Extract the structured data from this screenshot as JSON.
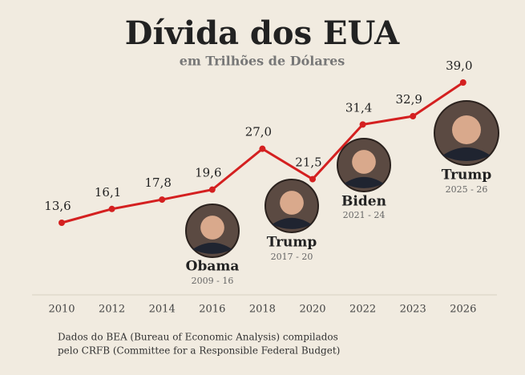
{
  "chart_data": {
    "type": "line",
    "title": "Dívida dos EUA",
    "subtitle": "em Trilhões de Dólares",
    "categories": [
      "2010",
      "2012",
      "2014",
      "2016",
      "2018",
      "2020",
      "2022",
      "2023",
      "2026"
    ],
    "series": [
      {
        "name": "Dívida",
        "color": "#d42020",
        "values": [
          13.6,
          16.1,
          17.8,
          19.6,
          27.0,
          21.5,
          31.4,
          32.9,
          39.0
        ],
        "value_labels": [
          "13,6",
          "16,1",
          "17,8",
          "19,6",
          "27,0",
          "21,5",
          "31,4",
          "32,9",
          "39,0"
        ]
      }
    ],
    "annotations": [
      {
        "text": "Obama",
        "subtext": "2009 - 16"
      },
      {
        "text": "Trump",
        "subtext": "2017 - 20"
      },
      {
        "text": "Biden",
        "subtext": "2021 - 24"
      },
      {
        "text": "Trump",
        "subtext": "2025 - 26"
      }
    ],
    "source": [
      "Dados do BEA (Bureau of Economic Analysis) compilados",
      "pelo CRFB (Committee for a Responsible Federal Budget)"
    ]
  }
}
